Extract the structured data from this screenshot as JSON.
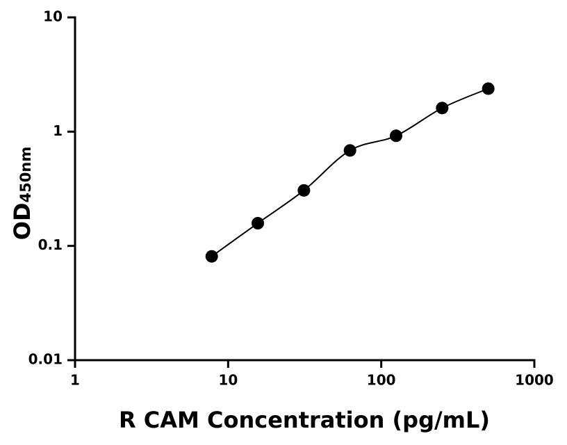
{
  "chart_data": {
    "type": "scatter",
    "x_label": "R CAM Concentration (pg/mL)",
    "y_label": "OD",
    "y_label_subscript": "450nm",
    "x": [
      7.8125,
      15.625,
      31.25,
      62.5,
      125,
      250,
      500
    ],
    "series": [
      {
        "values": [
          0.081,
          0.158,
          0.306,
          0.685,
          0.92,
          1.61,
          2.38
        ],
        "color": "#000000"
      }
    ],
    "xlim": [
      1,
      1000
    ],
    "xticks": [
      1,
      10,
      100,
      1000
    ],
    "ylim": [
      0.01,
      10
    ],
    "yticks": [
      0.01,
      0.1,
      1,
      10
    ],
    "xscale": "log",
    "yscale": "log",
    "fit_curve": true
  }
}
